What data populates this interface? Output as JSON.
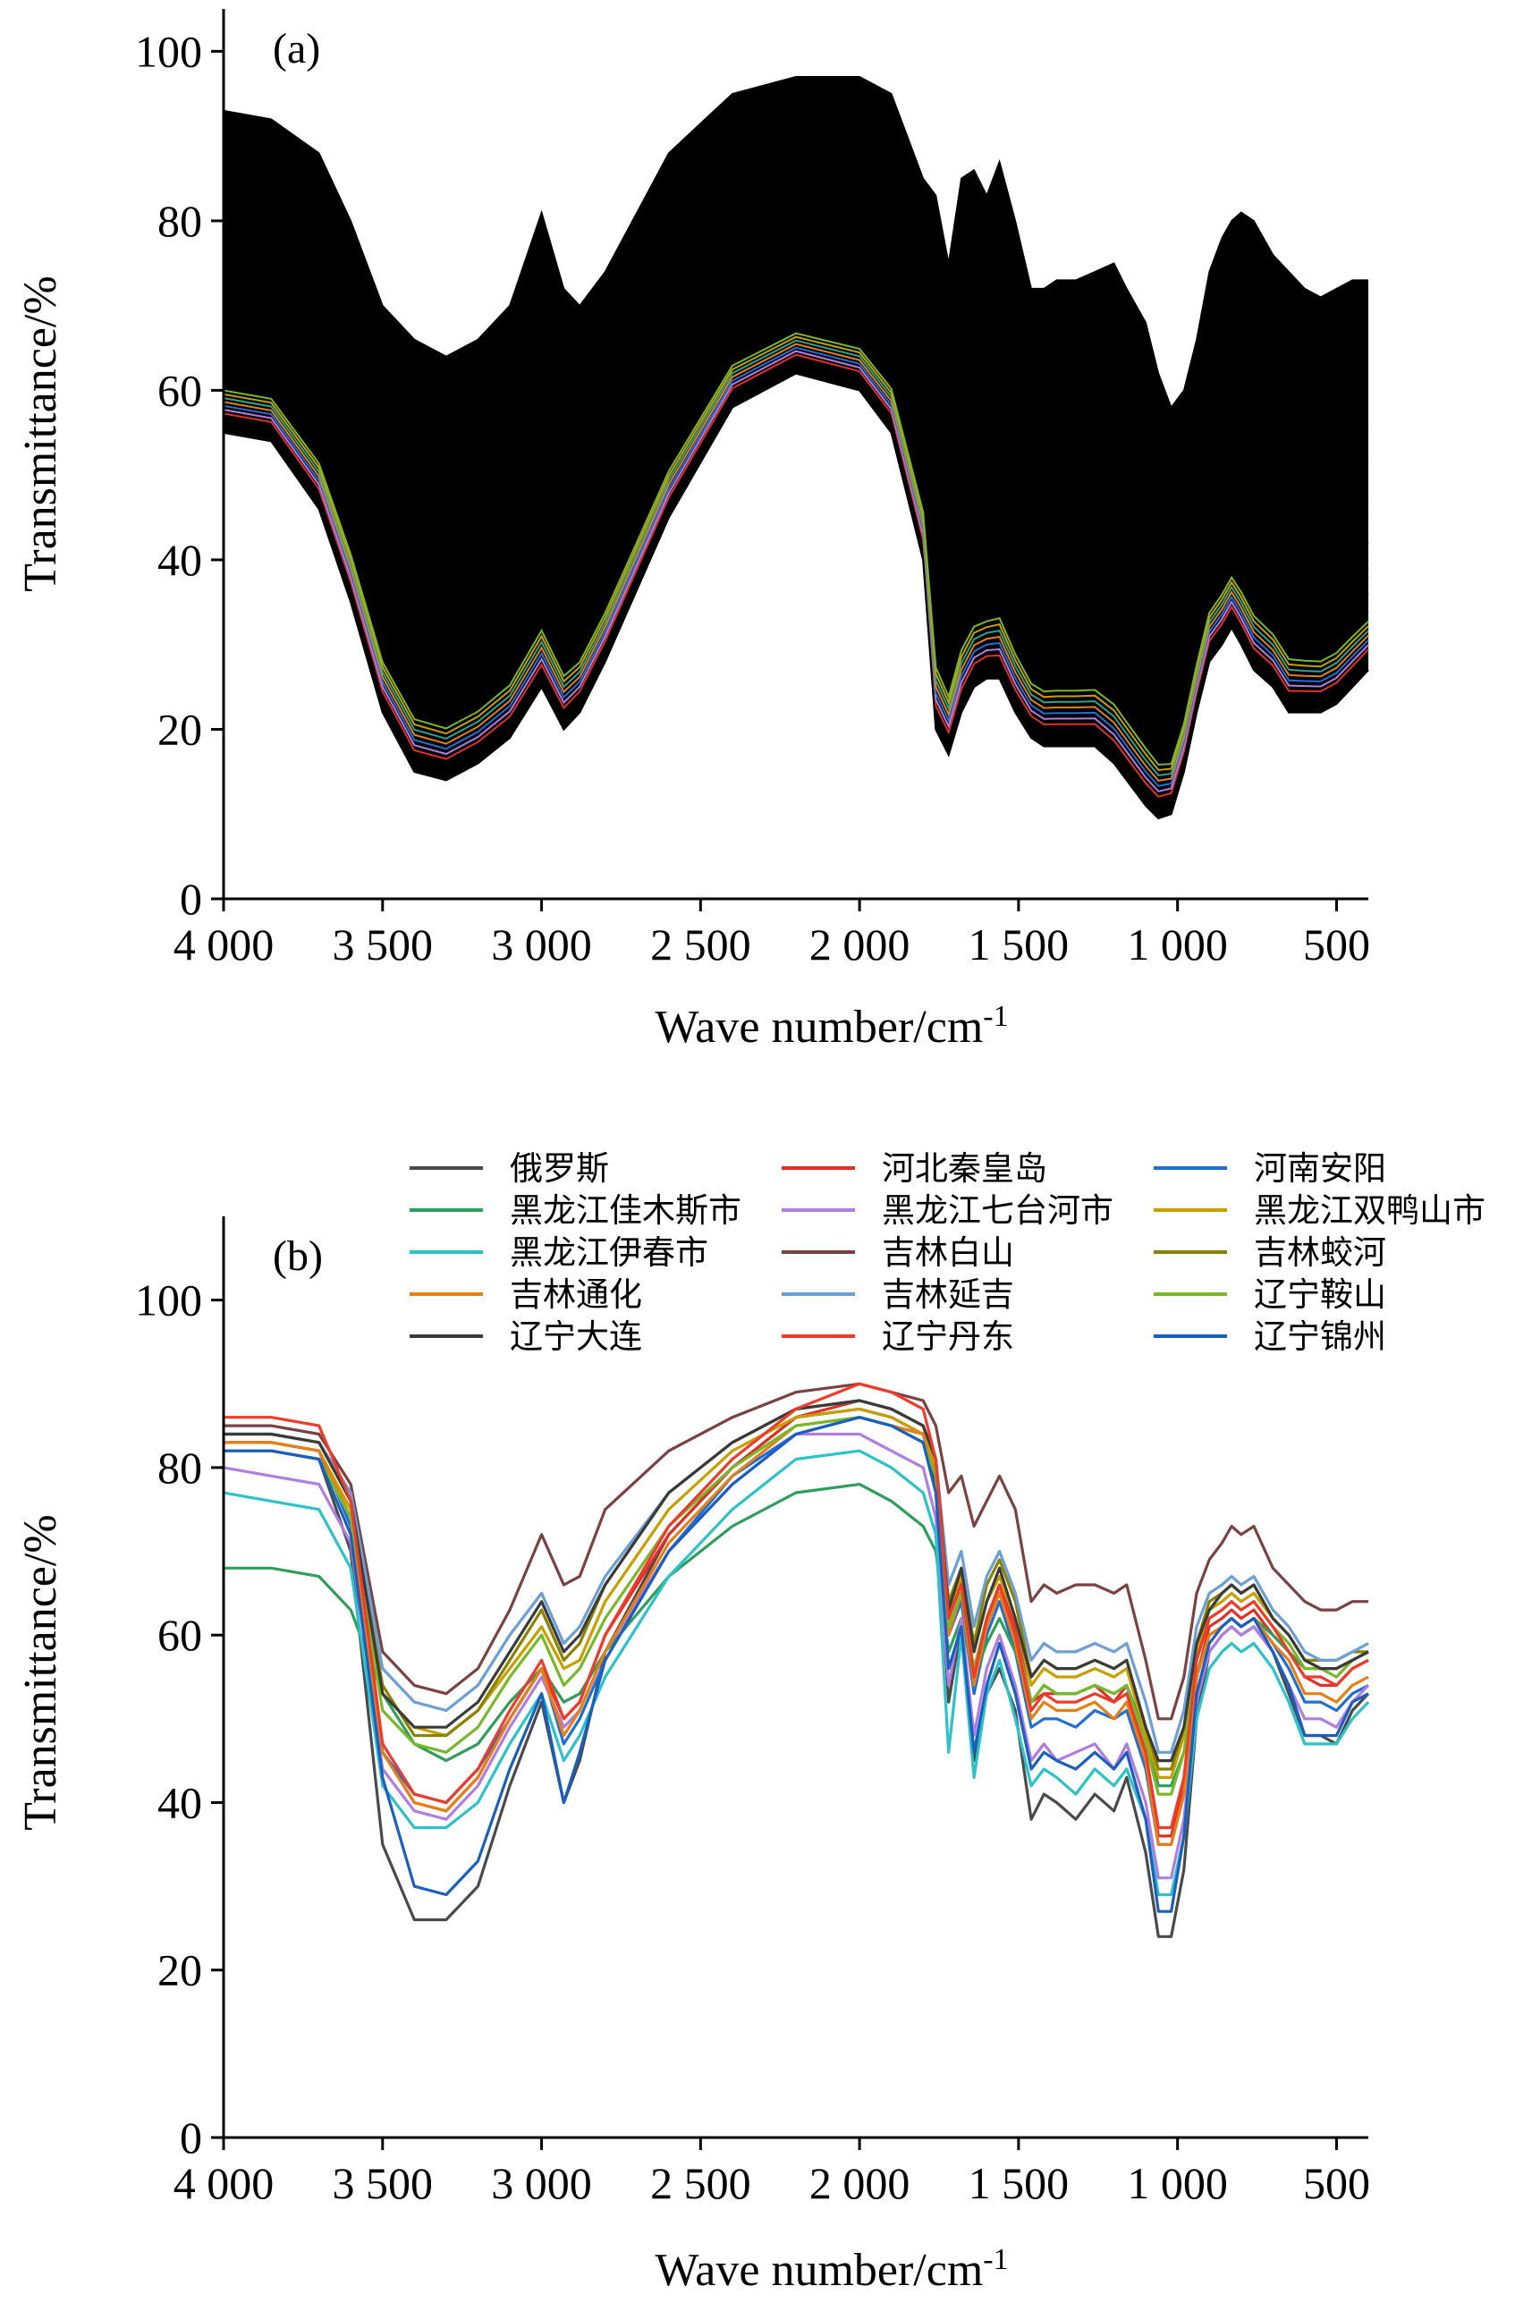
{
  "chart_data": [
    {
      "type": "line",
      "panel_label": "(a)",
      "xlabel": "Wave number/cm",
      "xlabel_sup": "-1",
      "ylabel": "Transmittance/%",
      "xlim": [
        4000,
        400
      ],
      "ylim": [
        0,
        105
      ],
      "x_ticks": [
        4000,
        3500,
        3000,
        2500,
        2000,
        1500,
        1000,
        500
      ],
      "x_tick_labels": [
        "4 000",
        "3 500",
        "3 000",
        "2 500",
        "2 000",
        "1 500",
        "1 000",
        "500"
      ],
      "y_ticks": [
        0,
        20,
        40,
        60,
        80,
        100
      ],
      "y_tick_labels": [
        "0",
        "20",
        "40",
        "60",
        "80",
        "100"
      ],
      "grid": false,
      "legend": "none",
      "description_of_series": "many overlapping spectra",
      "wavenumbers": [
        4000,
        3850,
        3700,
        3600,
        3500,
        3400,
        3300,
        3200,
        3100,
        3000,
        2930,
        2880,
        2800,
        2600,
        2400,
        2200,
        2000,
        1900,
        1800,
        1760,
        1720,
        1680,
        1640,
        1600,
        1560,
        1510,
        1460,
        1420,
        1380,
        1320,
        1260,
        1200,
        1160,
        1100,
        1060,
        1020,
        980,
        940,
        900,
        860,
        830,
        800,
        760,
        700,
        650,
        600,
        550,
        500,
        450,
        400
      ],
      "upper_envelope": [
        93,
        92,
        88,
        80,
        70,
        66,
        64,
        66,
        70,
        81,
        72,
        70,
        74,
        88,
        95,
        97,
        97,
        95,
        85,
        83,
        75,
        85,
        86,
        83,
        87,
        80,
        72,
        72,
        73,
        73,
        74,
        75,
        72,
        68,
        62,
        58,
        60,
        66,
        74,
        78,
        80,
        81,
        80,
        76,
        74,
        72,
        71,
        72,
        73,
        73
      ],
      "lower_envelope": [
        55,
        54,
        46,
        35,
        22,
        15,
        14,
        16,
        19,
        25,
        20,
        22,
        28,
        45,
        58,
        62,
        60,
        55,
        40,
        20,
        17,
        22,
        25,
        26,
        26,
        22,
        19,
        18,
        18,
        18,
        18,
        16,
        14,
        11,
        9.5,
        10,
        15,
        22,
        28,
        30,
        32,
        30,
        27,
        25,
        22,
        22,
        22,
        23,
        25,
        27
      ],
      "highlighted_series_colors": [
        "#e0302a",
        "#b07ee0",
        "#1f6fd4",
        "#e87f14",
        "#2aa38f",
        "#c7a000",
        "#78b82a"
      ]
    },
    {
      "type": "line",
      "panel_label": "(b)",
      "xlabel": "Wave number/cm",
      "xlabel_sup": "-1",
      "ylabel": "Transmittance/%",
      "xlim": [
        4000,
        400
      ],
      "ylim": [
        0,
        110
      ],
      "x_ticks": [
        4000,
        3500,
        3000,
        2500,
        2000,
        1500,
        1000,
        500
      ],
      "x_tick_labels": [
        "4 000",
        "3 500",
        "3 000",
        "2 500",
        "2 000",
        "1 500",
        "1 000",
        "500"
      ],
      "y_ticks": [
        0,
        20,
        40,
        60,
        80,
        100
      ],
      "y_tick_labels": [
        "0",
        "20",
        "40",
        "60",
        "80",
        "100"
      ],
      "grid": false,
      "legend": "top (above plot), 3 columns",
      "x": [
        4000,
        3850,
        3700,
        3600,
        3500,
        3400,
        3300,
        3200,
        3100,
        3000,
        2930,
        2880,
        2800,
        2600,
        2400,
        2200,
        2000,
        1900,
        1800,
        1760,
        1720,
        1680,
        1640,
        1600,
        1560,
        1510,
        1460,
        1420,
        1380,
        1320,
        1260,
        1200,
        1160,
        1100,
        1060,
        1020,
        980,
        940,
        900,
        860,
        830,
        800,
        760,
        700,
        650,
        600,
        550,
        500,
        450,
        400
      ],
      "series": [
        {
          "name": "俄罗斯",
          "color": "#4a4a4a",
          "values": [
            82,
            82,
            81,
            70,
            35,
            26,
            26,
            30,
            42,
            52,
            40,
            45,
            58,
            72,
            80,
            86,
            87,
            86,
            84,
            78,
            52,
            61,
            45,
            53,
            56,
            51,
            38,
            41,
            40,
            38,
            41,
            39,
            43,
            34,
            24,
            24,
            32,
            50,
            58,
            60,
            61,
            60,
            61,
            58,
            53,
            48,
            48,
            47,
            51,
            53
          ]
        },
        {
          "name": "河北秦皇岛",
          "color": "#e0302a",
          "values": [
            83,
            83,
            82,
            74,
            46,
            40,
            39,
            43,
            50,
            56,
            50,
            52,
            60,
            72,
            80,
            86,
            88,
            87,
            85,
            80,
            62,
            67,
            55,
            61,
            66,
            61,
            52,
            53,
            53,
            53,
            54,
            52,
            54,
            46,
            36,
            36,
            42,
            55,
            61,
            62,
            63,
            62,
            63,
            60,
            58,
            55,
            54,
            54,
            56,
            57
          ]
        },
        {
          "name": "河南安阳",
          "color": "#1f6fd4",
          "values": [
            83,
            83,
            82,
            73,
            46,
            41,
            40,
            44,
            50,
            56,
            47,
            50,
            57,
            70,
            79,
            84,
            86,
            85,
            84,
            79,
            60,
            64,
            53,
            60,
            64,
            58,
            49,
            50,
            50,
            49,
            51,
            50,
            51,
            44,
            35,
            35,
            41,
            55,
            60,
            61,
            62,
            61,
            62,
            59,
            56,
            52,
            52,
            51,
            53,
            54
          ]
        },
        {
          "name": "黑龙江佳木斯市",
          "color": "#2e9e5b",
          "values": [
            68,
            68,
            67,
            63,
            53,
            47,
            45,
            47,
            52,
            56,
            52,
            53,
            58,
            67,
            73,
            77,
            78,
            76,
            73,
            70,
            58,
            62,
            55,
            59,
            62,
            58,
            52,
            54,
            53,
            53,
            54,
            53,
            54,
            48,
            42,
            42,
            46,
            55,
            60,
            61,
            62,
            61,
            62,
            60,
            58,
            56,
            56,
            56,
            57,
            58
          ]
        },
        {
          "name": "黑龙江七台河市",
          "color": "#b07ee0",
          "values": [
            80,
            79,
            78,
            71,
            44,
            39,
            38,
            42,
            49,
            55,
            49,
            51,
            58,
            70,
            78,
            84,
            84,
            82,
            80,
            74,
            54,
            62,
            48,
            56,
            60,
            54,
            45,
            47,
            45,
            46,
            47,
            44,
            47,
            40,
            31,
            31,
            38,
            52,
            58,
            60,
            61,
            60,
            61,
            58,
            54,
            50,
            50,
            49,
            52,
            54
          ]
        },
        {
          "name": "黑龙江双鸭山市",
          "color": "#c7a000",
          "values": [
            83,
            83,
            82,
            75,
            53,
            49,
            48,
            51,
            56,
            61,
            56,
            57,
            64,
            75,
            82,
            86,
            87,
            86,
            84,
            80,
            63,
            67,
            58,
            64,
            67,
            62,
            54,
            56,
            55,
            55,
            56,
            55,
            56,
            48,
            43,
            43,
            48,
            58,
            63,
            64,
            65,
            64,
            65,
            62,
            60,
            57,
            56,
            56,
            57,
            58
          ]
        },
        {
          "name": "黑龙江伊春市",
          "color": "#2cc2c9",
          "values": [
            77,
            76,
            75,
            68,
            42,
            37,
            37,
            40,
            47,
            53,
            45,
            48,
            55,
            67,
            75,
            81,
            82,
            80,
            77,
            72,
            46,
            60,
            43,
            53,
            57,
            50,
            42,
            44,
            43,
            41,
            44,
            42,
            44,
            38,
            29,
            29,
            36,
            50,
            56,
            58,
            59,
            58,
            59,
            56,
            52,
            47,
            47,
            47,
            50,
            52
          ]
        },
        {
          "name": "吉林白山",
          "color": "#7a4240",
          "values": [
            85,
            85,
            84,
            78,
            58,
            54,
            53,
            56,
            63,
            72,
            66,
            67,
            75,
            82,
            86,
            89,
            90,
            89,
            88,
            85,
            77,
            79,
            73,
            76,
            79,
            75,
            64,
            66,
            65,
            66,
            66,
            65,
            66,
            57,
            50,
            50,
            55,
            65,
            69,
            71,
            73,
            72,
            73,
            68,
            66,
            64,
            63,
            63,
            64,
            64
          ]
        },
        {
          "name": "吉林蛟河",
          "color": "#8a8200",
          "values": [
            84,
            84,
            83,
            76,
            54,
            48,
            48,
            51,
            57,
            63,
            57,
            59,
            66,
            77,
            83,
            87,
            88,
            87,
            85,
            81,
            64,
            68,
            59,
            66,
            69,
            64,
            55,
            57,
            56,
            56,
            57,
            56,
            57,
            49,
            44,
            44,
            49,
            59,
            64,
            65,
            66,
            65,
            66,
            62,
            60,
            57,
            57,
            57,
            58,
            58
          ]
        },
        {
          "name": "吉林通化",
          "color": "#e87f14",
          "values": [
            83,
            83,
            82,
            74,
            46,
            40,
            39,
            43,
            50,
            56,
            48,
            51,
            58,
            71,
            79,
            85,
            86,
            85,
            84,
            79,
            60,
            65,
            54,
            61,
            65,
            59,
            50,
            52,
            51,
            51,
            52,
            50,
            52,
            45,
            35,
            35,
            41,
            55,
            60,
            61,
            62,
            61,
            62,
            59,
            57,
            53,
            53,
            52,
            54,
            55
          ]
        },
        {
          "name": "吉林延吉",
          "color": "#6b9fd6",
          "values": [
            84,
            84,
            83,
            77,
            56,
            52,
            51,
            54,
            60,
            65,
            59,
            61,
            67,
            77,
            83,
            87,
            88,
            87,
            85,
            81,
            66,
            70,
            61,
            67,
            70,
            65,
            57,
            59,
            58,
            58,
            59,
            58,
            59,
            52,
            46,
            46,
            51,
            61,
            65,
            66,
            67,
            66,
            67,
            63,
            61,
            58,
            57,
            57,
            58,
            59
          ]
        },
        {
          "name": "辽宁鞍山",
          "color": "#78b82a",
          "values": [
            82,
            82,
            81,
            74,
            51,
            47,
            46,
            49,
            55,
            60,
            54,
            56,
            62,
            73,
            80,
            85,
            86,
            85,
            83,
            79,
            61,
            65,
            56,
            62,
            66,
            60,
            52,
            54,
            53,
            53,
            54,
            53,
            54,
            47,
            41,
            41,
            46,
            57,
            62,
            63,
            64,
            63,
            64,
            61,
            59,
            56,
            56,
            55,
            57,
            58
          ]
        },
        {
          "name": "辽宁大连",
          "color": "#3a3a3a",
          "values": [
            84,
            84,
            83,
            76,
            53,
            49,
            49,
            52,
            58,
            64,
            58,
            60,
            66,
            77,
            83,
            87,
            88,
            87,
            85,
            81,
            63,
            68,
            58,
            64,
            68,
            62,
            55,
            57,
            56,
            56,
            57,
            56,
            57,
            49,
            45,
            45,
            49,
            59,
            63,
            65,
            66,
            65,
            66,
            62,
            60,
            57,
            56,
            56,
            57,
            58
          ]
        },
        {
          "name": "辽宁丹东",
          "color": "#ef3b2c",
          "values": [
            86,
            86,
            85,
            76,
            47,
            41,
            40,
            44,
            51,
            57,
            50,
            52,
            60,
            73,
            81,
            87,
            90,
            89,
            87,
            81,
            62,
            66,
            55,
            62,
            66,
            60,
            51,
            53,
            52,
            52,
            53,
            52,
            53,
            46,
            37,
            37,
            43,
            57,
            62,
            63,
            64,
            63,
            64,
            61,
            58,
            55,
            55,
            54,
            56,
            57
          ]
        },
        {
          "name": "辽宁锦州",
          "color": "#1a5fc0",
          "values": [
            82,
            82,
            81,
            72,
            43,
            30,
            29,
            33,
            44,
            53,
            40,
            46,
            57,
            70,
            78,
            84,
            86,
            85,
            83,
            77,
            56,
            61,
            46,
            54,
            59,
            53,
            44,
            46,
            45,
            44,
            46,
            44,
            46,
            38,
            27,
            27,
            36,
            53,
            59,
            61,
            62,
            61,
            62,
            58,
            54,
            48,
            48,
            48,
            52,
            53
          ]
        }
      ]
    }
  ]
}
